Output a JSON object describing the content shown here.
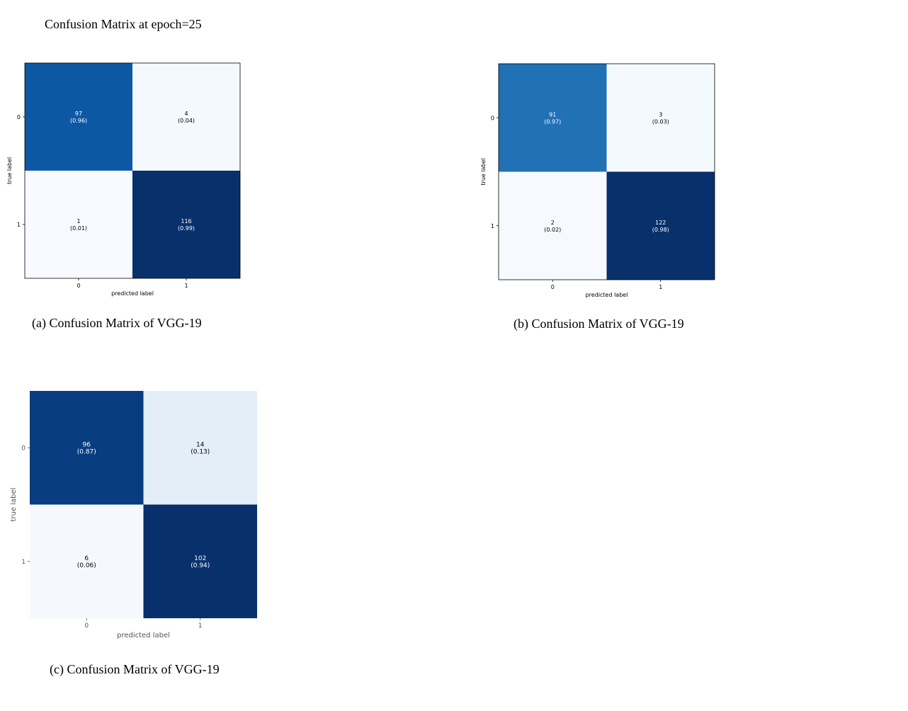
{
  "heading": "Confusion Matrix at epoch=25",
  "captions": [
    "(a) Confusion Matrix of VGG-19",
    "(b) Confusion Matrix of VGG-19",
    "(c) Confusion Matrix of VGG-19"
  ],
  "chart_data": [
    {
      "type": "heatmap",
      "title": "",
      "xlabel": "predicted label",
      "ylabel": "true label",
      "x_ticks": [
        "0",
        "1"
      ],
      "y_ticks": [
        "0",
        "1"
      ],
      "colormap": "Blues",
      "counts": [
        [
          97,
          4
        ],
        [
          1,
          116
        ]
      ],
      "fractions": [
        [
          "(0.96)",
          "(0.04)"
        ],
        [
          "(0.01)",
          "(0.99)"
        ]
      ],
      "cell_colors": [
        [
          "#0d58a5",
          "#f4f9fe"
        ],
        [
          "#f7fbff",
          "#08306b"
        ]
      ],
      "text_colors": [
        [
          "#ffffff",
          "#000000"
        ],
        [
          "#000000",
          "#ffffff"
        ]
      ],
      "border": true
    },
    {
      "type": "heatmap",
      "title": "",
      "xlabel": "predicted label",
      "ylabel": "true label",
      "x_ticks": [
        "0",
        "1"
      ],
      "y_ticks": [
        "0",
        "1"
      ],
      "colormap": "Blues",
      "counts": [
        [
          91,
          3
        ],
        [
          2,
          122
        ]
      ],
      "fractions": [
        [
          "(0.97)",
          "(0.03)"
        ],
        [
          "(0.02)",
          "(0.98)"
        ]
      ],
      "cell_colors": [
        [
          "#2171b5",
          "#f4f9fe"
        ],
        [
          "#f6faff",
          "#08306b"
        ]
      ],
      "text_colors": [
        [
          "#ffffff",
          "#000000"
        ],
        [
          "#000000",
          "#ffffff"
        ]
      ],
      "border": true
    },
    {
      "type": "heatmap",
      "title": "",
      "xlabel": "predicted label",
      "ylabel": "true label",
      "x_ticks": [
        "0",
        "1"
      ],
      "y_ticks": [
        "0",
        "1"
      ],
      "colormap": "Blues",
      "counts": [
        [
          96,
          14
        ],
        [
          6,
          102
        ]
      ],
      "fractions": [
        [
          "(0.87)",
          "(0.13)"
        ],
        [
          "(0.06)",
          "(0.94)"
        ]
      ],
      "cell_colors": [
        [
          "#083e81",
          "#e3eef9"
        ],
        [
          "#f5f9fe",
          "#08306b"
        ]
      ],
      "text_colors": [
        [
          "#ffffff",
          "#000000"
        ],
        [
          "#000000",
          "#ffffff"
        ]
      ],
      "border": false
    }
  ]
}
